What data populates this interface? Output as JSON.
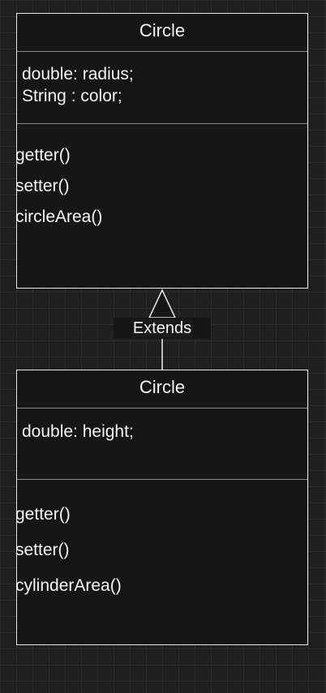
{
  "diagram": {
    "parent_class": {
      "name": "Circle",
      "attributes": [
        "double: radius;",
        "String : color;"
      ],
      "methods": [
        "getter()",
        "setter()",
        "circleArea()"
      ]
    },
    "child_class": {
      "name": "Circle",
      "attributes": [
        "double: height;"
      ],
      "methods": [
        "getter()",
        "setter()",
        "cylinderArea()"
      ]
    },
    "relationship": {
      "label": "Extends",
      "type": "inheritance"
    }
  },
  "colors": {
    "background": "#1f1f1f",
    "box_fill": "#161616",
    "border": "#e8e8e8",
    "divider": "#8a8a8a",
    "text": "#f5f5f5"
  }
}
